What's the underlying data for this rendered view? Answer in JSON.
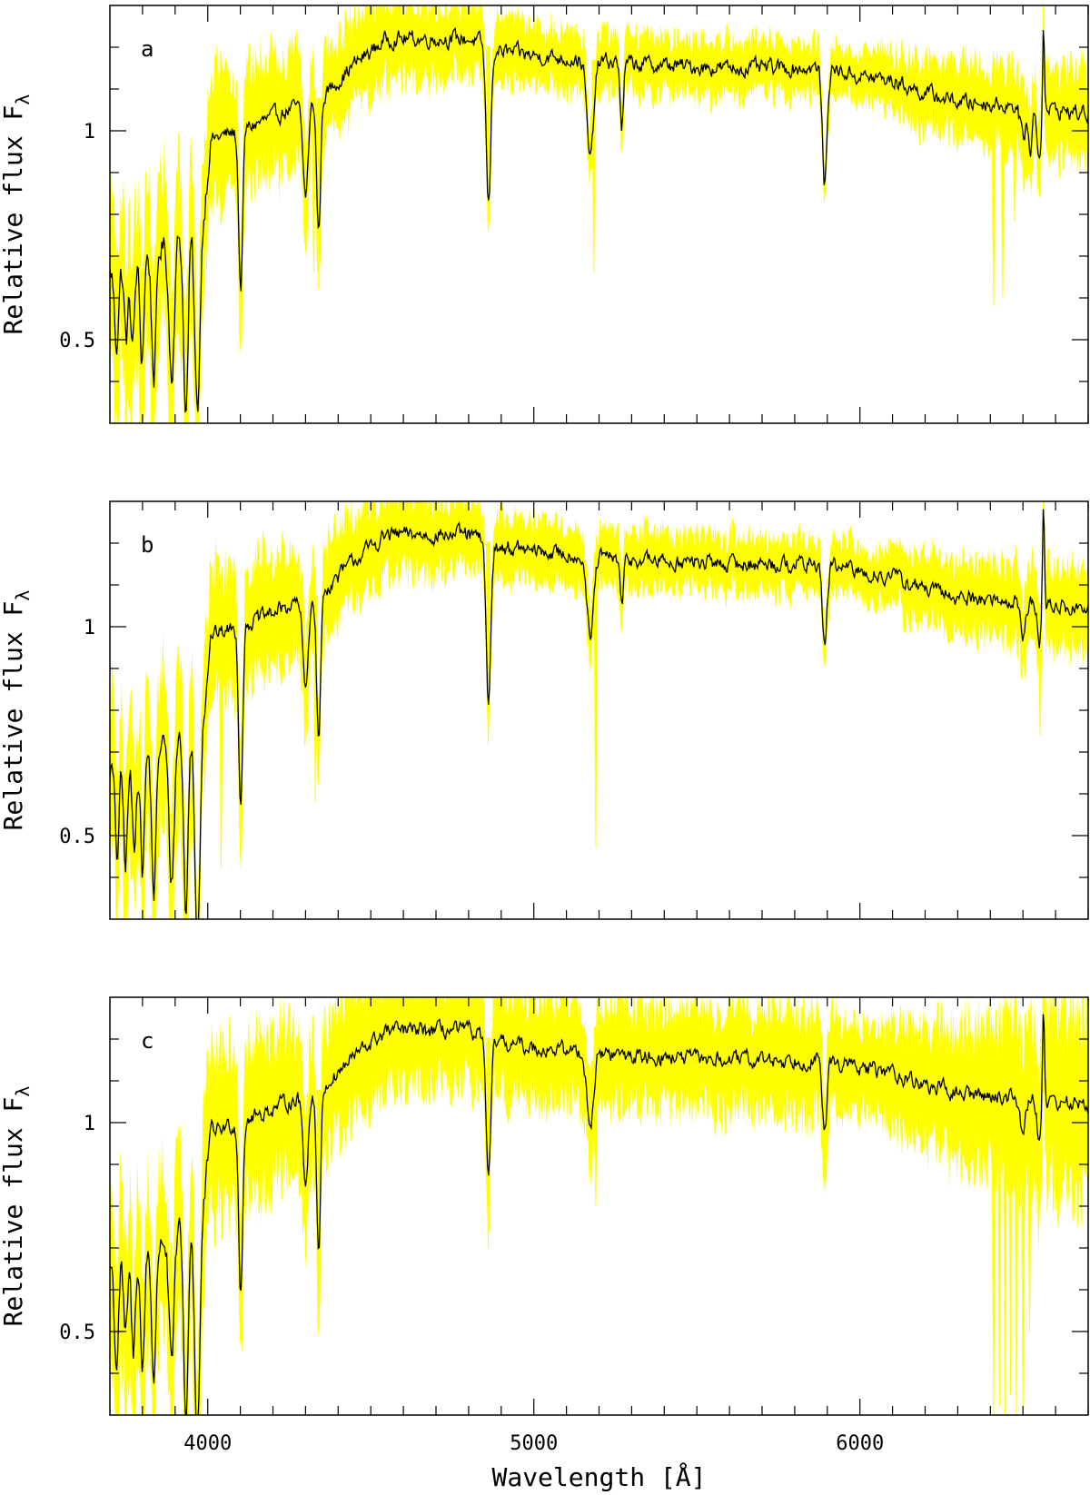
{
  "chart_data": {
    "type": "line",
    "xlabel": "Wavelength  [Å]",
    "ylabel": "Relative flux F",
    "ylabel_subscript": "λ",
    "xlim": [
      3700,
      6700
    ],
    "ylim": [
      0.3,
      1.3
    ],
    "x_ticks": [
      4000,
      5000,
      6000
    ],
    "x_tick_labels": [
      "4000",
      "5000",
      "6000"
    ],
    "y_ticks": [
      0.5,
      1
    ],
    "y_tick_labels": [
      "0.5",
      "1"
    ],
    "grid": false,
    "colors": {
      "band": "#ffff00",
      "line": "#000000"
    },
    "panels": [
      {
        "label": "a",
        "features": [
          {
            "center": 3720,
            "depth": 0.18,
            "width": 6
          },
          {
            "center": 3750,
            "depth": 0.18,
            "width": 6
          },
          {
            "center": 3770,
            "depth": 0.2,
            "width": 6
          },
          {
            "center": 3798,
            "depth": 0.25,
            "width": 6
          },
          {
            "center": 3835,
            "depth": 0.3,
            "width": 7
          },
          {
            "center": 3889,
            "depth": 0.32,
            "width": 8
          },
          {
            "center": 3933,
            "depth": 0.45,
            "width": 7
          },
          {
            "center": 3968,
            "depth": 0.48,
            "width": 8
          },
          {
            "center": 4101,
            "depth": 0.38,
            "width": 6
          },
          {
            "center": 4300,
            "depth": 0.22,
            "width": 8
          },
          {
            "center": 4340,
            "depth": 0.32,
            "width": 6
          },
          {
            "center": 4861,
            "depth": 0.38,
            "width": 7
          },
          {
            "center": 5173,
            "depth": 0.24,
            "width": 10
          },
          {
            "center": 5270,
            "depth": 0.15,
            "width": 5
          },
          {
            "center": 5892,
            "depth": 0.28,
            "width": 7
          },
          {
            "center": 6500,
            "depth": 0.08,
            "width": 8
          },
          {
            "center": 6523,
            "depth": 0.12,
            "width": 5
          },
          {
            "center": 6550,
            "depth": 0.12,
            "width": 6
          }
        ],
        "emission": {
          "center": 6563,
          "height": 0.22,
          "width": 3
        },
        "band_width": [
          [
            3700,
            0.2
          ],
          [
            3950,
            0.2
          ],
          [
            4000,
            0.16
          ],
          [
            4500,
            0.1
          ],
          [
            5000,
            0.07
          ],
          [
            6000,
            0.06
          ],
          [
            6200,
            0.08
          ],
          [
            6700,
            0.11
          ]
        ],
        "spikes_down": [
          [
            4325,
            0.66
          ],
          [
            4340,
            0.62
          ],
          [
            4860,
            0.76
          ],
          [
            5184,
            0.66
          ],
          [
            6410,
            0.58
          ],
          [
            6438,
            0.6
          ],
          [
            6475,
            0.78
          ],
          [
            6530,
            0.9
          ]
        ]
      },
      {
        "label": "b",
        "features": [
          {
            "center": 3722,
            "depth": 0.22,
            "width": 6
          },
          {
            "center": 3748,
            "depth": 0.25,
            "width": 6
          },
          {
            "center": 3774,
            "depth": 0.22,
            "width": 6
          },
          {
            "center": 3800,
            "depth": 0.28,
            "width": 6
          },
          {
            "center": 3835,
            "depth": 0.35,
            "width": 7
          },
          {
            "center": 3889,
            "depth": 0.35,
            "width": 8
          },
          {
            "center": 3933,
            "depth": 0.45,
            "width": 7
          },
          {
            "center": 3968,
            "depth": 0.55,
            "width": 8
          },
          {
            "center": 4101,
            "depth": 0.42,
            "width": 6
          },
          {
            "center": 4300,
            "depth": 0.22,
            "width": 8
          },
          {
            "center": 4340,
            "depth": 0.35,
            "width": 6
          },
          {
            "center": 4861,
            "depth": 0.38,
            "width": 7
          },
          {
            "center": 5173,
            "depth": 0.2,
            "width": 10
          },
          {
            "center": 5270,
            "depth": 0.12,
            "width": 5
          },
          {
            "center": 5892,
            "depth": 0.2,
            "width": 7
          },
          {
            "center": 6500,
            "depth": 0.08,
            "width": 8
          },
          {
            "center": 6550,
            "depth": 0.1,
            "width": 6
          }
        ],
        "emission": {
          "center": 6563,
          "height": 0.25,
          "width": 3
        },
        "band_width": [
          [
            3700,
            0.18
          ],
          [
            3950,
            0.18
          ],
          [
            4000,
            0.15
          ],
          [
            4500,
            0.1
          ],
          [
            5000,
            0.07
          ],
          [
            6000,
            0.06
          ],
          [
            6200,
            0.08
          ],
          [
            6700,
            0.1
          ]
        ],
        "spikes_down": [
          [
            4041,
            0.42
          ],
          [
            4330,
            0.58
          ],
          [
            4860,
            0.72
          ],
          [
            5190,
            0.47
          ],
          [
            6553,
            0.74
          ]
        ]
      },
      {
        "label": "c",
        "features": [
          {
            "center": 3720,
            "depth": 0.25,
            "width": 6
          },
          {
            "center": 3748,
            "depth": 0.2,
            "width": 6
          },
          {
            "center": 3772,
            "depth": 0.25,
            "width": 6
          },
          {
            "center": 3800,
            "depth": 0.3,
            "width": 6
          },
          {
            "center": 3835,
            "depth": 0.32,
            "width": 7
          },
          {
            "center": 3889,
            "depth": 0.32,
            "width": 8
          },
          {
            "center": 3933,
            "depth": 0.48,
            "width": 7
          },
          {
            "center": 3968,
            "depth": 0.55,
            "width": 8
          },
          {
            "center": 4101,
            "depth": 0.4,
            "width": 6
          },
          {
            "center": 4300,
            "depth": 0.2,
            "width": 8
          },
          {
            "center": 4340,
            "depth": 0.38,
            "width": 6
          },
          {
            "center": 4861,
            "depth": 0.35,
            "width": 7
          },
          {
            "center": 5173,
            "depth": 0.18,
            "width": 10
          },
          {
            "center": 5892,
            "depth": 0.18,
            "width": 7
          },
          {
            "center": 6500,
            "depth": 0.08,
            "width": 8
          },
          {
            "center": 6550,
            "depth": 0.1,
            "width": 6
          }
        ],
        "emission": {
          "center": 6563,
          "height": 0.24,
          "width": 3
        },
        "band_width": [
          [
            3700,
            0.2
          ],
          [
            3950,
            0.2
          ],
          [
            4000,
            0.2
          ],
          [
            4500,
            0.14
          ],
          [
            5000,
            0.12
          ],
          [
            5880,
            0.12
          ],
          [
            6000,
            0.1
          ],
          [
            6200,
            0.14
          ],
          [
            6700,
            0.22
          ]
        ],
        "spikes_down": [
          [
            4340,
            0.54
          ],
          [
            4860,
            0.7
          ],
          [
            5190,
            0.8
          ],
          [
            6410,
            0.3
          ],
          [
            6428,
            0.32
          ],
          [
            6445,
            0.3
          ],
          [
            6462,
            0.35
          ],
          [
            6480,
            0.3
          ],
          [
            6500,
            0.32
          ],
          [
            6520,
            0.5
          ]
        ]
      }
    ]
  }
}
